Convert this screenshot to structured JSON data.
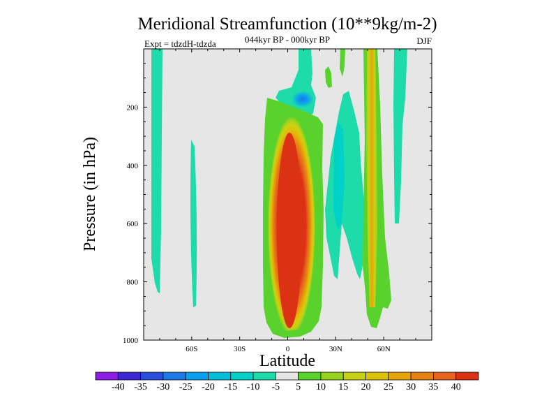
{
  "chart_data": {
    "type": "contour",
    "title": "Meridional Streamfunction (10**9kg/m-2)",
    "subtitle_center": "044kyr BP - 000kyr BP",
    "subtitle_left": "Expt = tdzdH-tdzda",
    "subtitle_right": "DJF",
    "xlabel": "Latitude",
    "ylabel": "Pressure (in hPa)",
    "xlim": [
      -90,
      90
    ],
    "ylim": [
      1000,
      0
    ],
    "x_ticks": [
      {
        "value": -60,
        "label": "60S"
      },
      {
        "value": -30,
        "label": "30S"
      },
      {
        "value": 0,
        "label": "0"
      },
      {
        "value": 30,
        "label": "30N"
      },
      {
        "value": 60,
        "label": "60N"
      }
    ],
    "y_ticks": [
      {
        "value": 200,
        "label": "200"
      },
      {
        "value": 400,
        "label": "400"
      },
      {
        "value": 600,
        "label": "600"
      },
      {
        "value": 800,
        "label": "800"
      },
      {
        "value": 1000,
        "label": "1000"
      }
    ],
    "background_color": "#e6e6e6",
    "colorbar": {
      "labels": [
        "-40",
        "-35",
        "-30",
        "-25",
        "-20",
        "-15",
        "-10",
        "-5",
        "5",
        "10",
        "15",
        "20",
        "25",
        "30",
        "35",
        "40"
      ],
      "colors": [
        "#8c1ee6",
        "#3c28d2",
        "#2850dc",
        "#1e78e6",
        "#0aa0f0",
        "#00beda",
        "#00d2c8",
        "#1edcaa",
        "#e6e6e6",
        "#5ad22d",
        "#96d21e",
        "#c8d214",
        "#dcc30a",
        "#e6a50a",
        "#e68214",
        "#e6641e",
        "#dc3214"
      ]
    },
    "features": [
      {
        "name": "main-positive-cell",
        "kind": "positive",
        "center_lat": 2,
        "lat_range": [
          -14,
          22
        ],
        "p_top": 160,
        "p_bottom": 990,
        "peak": 40
      },
      {
        "name": "nh-positive-band",
        "kind": "positive",
        "center_lat": 55,
        "lat_range": [
          50,
          62
        ],
        "p_top": 10,
        "p_bottom": 970,
        "peak": 20
      },
      {
        "name": "nh-secondary-positive",
        "kind": "positive",
        "center_lat": 18,
        "lat_range": [
          14,
          22
        ],
        "p_top": 120,
        "p_bottom": 330,
        "peak": 5
      },
      {
        "name": "upper-negative-core",
        "kind": "negative",
        "center_lat": 9,
        "p_level": 180,
        "peak": -20
      },
      {
        "name": "sh-high-lat-negative",
        "kind": "negative",
        "center_lat": -80,
        "lat_range": [
          -83,
          -76
        ],
        "p_top": 10,
        "p_bottom": 820,
        "peak": -10
      },
      {
        "name": "sh-mid-lat-negative",
        "kind": "negative",
        "center_lat": -57,
        "lat_range": [
          -60,
          -53
        ],
        "p_top": 310,
        "p_bottom": 880,
        "peak": -10
      },
      {
        "name": "nh-subtropical-negative",
        "kind": "negative",
        "center_lat": 33,
        "lat_range": [
          25,
          45
        ],
        "p_top": 200,
        "p_bottom": 800,
        "peak": -15
      },
      {
        "name": "nh-high-lat-negative",
        "kind": "negative",
        "center_lat": 70,
        "lat_range": [
          65,
          75
        ],
        "p_top": 10,
        "p_bottom": 560,
        "peak": -10
      }
    ]
  }
}
